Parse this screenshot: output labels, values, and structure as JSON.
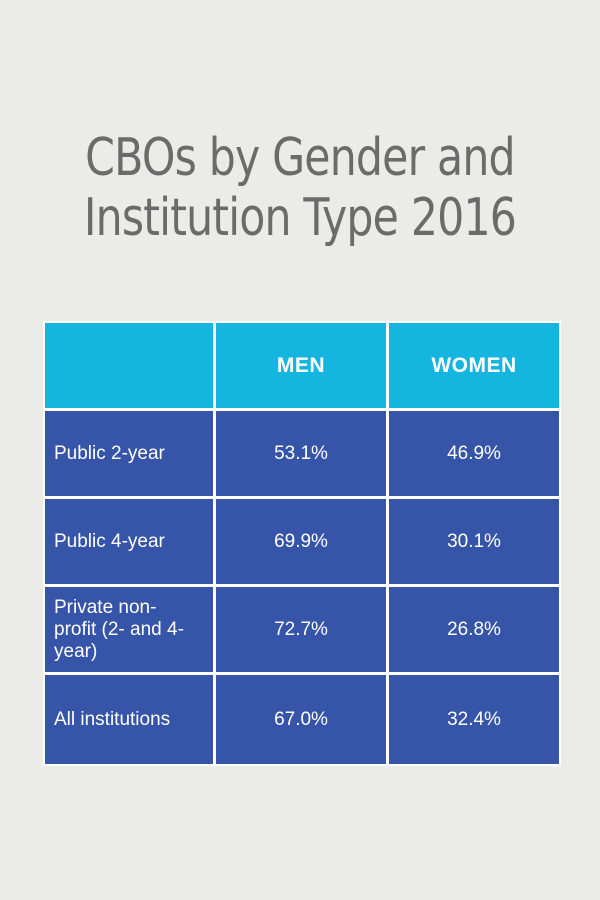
{
  "chart_data": {
    "type": "table",
    "title": "CBOs by Gender and Institution Type 2016",
    "title_lines": [
      "CBOs by Gender and",
      "Institution Type 2016"
    ],
    "columns": [
      "",
      "MEN",
      "WOMEN"
    ],
    "rows": [
      {
        "label": "Public 2-year",
        "men": "53.1%",
        "women": "46.9%"
      },
      {
        "label": "Public 4-year",
        "men": "69.9%",
        "women": "30.1%"
      },
      {
        "label": "Private non-profit (2- and 4-year)",
        "men": "72.7%",
        "women": "26.8%"
      },
      {
        "label": "All institutions",
        "men": "67.0%",
        "women": "32.4%"
      }
    ]
  },
  "colors": {
    "background": "#ebebea",
    "title": "#6b6b6b",
    "header": "#14b6e0",
    "body": "#3654a8",
    "text": "#ffffff"
  }
}
